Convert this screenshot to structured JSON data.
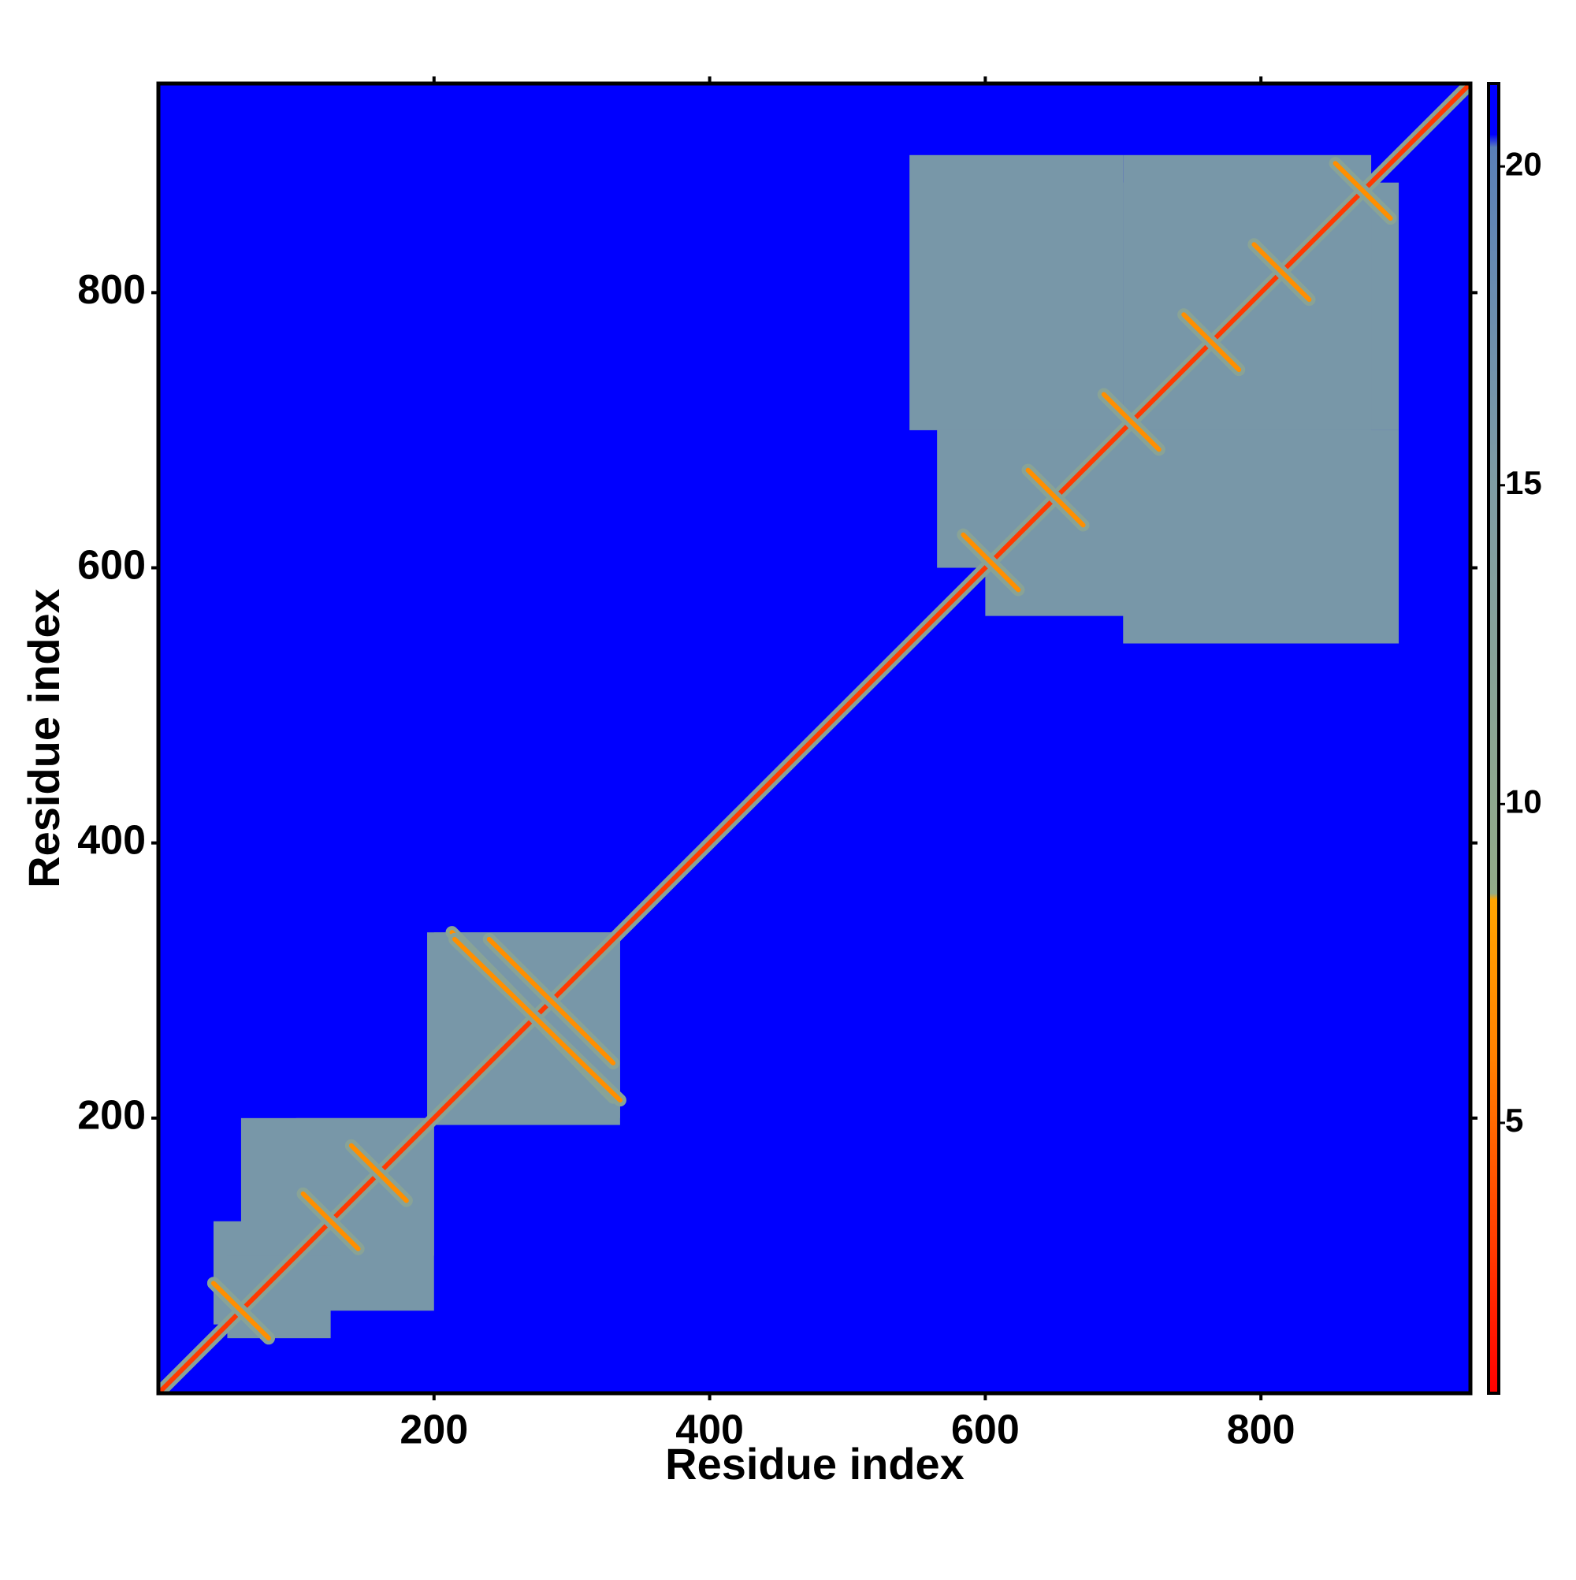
{
  "chart_data": {
    "type": "heatmap",
    "x_label": "Residue index",
    "y_label": "Residue index",
    "xlim": [
      0,
      952
    ],
    "ylim": [
      0,
      952
    ],
    "xticks": [
      200,
      400,
      600,
      800
    ],
    "yticks": [
      200,
      400,
      600,
      800
    ],
    "symmetric": true,
    "clim": [
      0.76,
      21.3
    ],
    "cticks": [
      5,
      10,
      15,
      20
    ],
    "colorscale": [
      {
        "value": 0.76,
        "color": "#ff0000"
      },
      {
        "value": 3,
        "color": "#ff3a00"
      },
      {
        "value": 6,
        "color": "#ff8000"
      },
      {
        "value": 8.5,
        "color": "#ffa500"
      },
      {
        "value": 8.6,
        "color": "#93ab88"
      },
      {
        "value": 15,
        "color": "#7f9ca4"
      },
      {
        "value": 20.3,
        "color": "#5a80b8"
      },
      {
        "value": 20.5,
        "color": "#0000ff"
      },
      {
        "value": 21.3,
        "color": "#0000ff"
      }
    ],
    "regions": [
      {
        "x": [
          0,
          952
        ],
        "y": [
          0,
          952
        ],
        "value": 21
      },
      {
        "x": [
          200,
          335
        ],
        "y": [
          195,
          335
        ],
        "value": 16
      },
      {
        "x": [
          100,
          200
        ],
        "y": [
          60,
          200
        ],
        "value": 16
      },
      {
        "x": [
          40,
          100
        ],
        "y": [
          50,
          125
        ],
        "value": 16
      },
      {
        "x": [
          565,
          700
        ],
        "y": [
          600,
          880
        ],
        "value": 16
      },
      {
        "x": [
          700,
          900
        ],
        "y": [
          700,
          880
        ],
        "value": 16
      },
      {
        "x": [
          700,
          900
        ],
        "y": [
          545,
          700
        ],
        "value": 16
      }
    ],
    "features": [
      {
        "x": [
          1,
          952
        ],
        "y": [
          1,
          952
        ],
        "value": 3
      },
      {
        "x": [
          40,
          80
        ],
        "y": [
          80,
          40
        ],
        "value": 7
      },
      {
        "x": [
          105,
          145
        ],
        "y": [
          145,
          105
        ],
        "value": 7
      },
      {
        "x": [
          140,
          180
        ],
        "y": [
          180,
          140
        ],
        "value": 7
      },
      {
        "x": [
          213,
          330
        ],
        "y": [
          335,
          215
        ],
        "value": 7
      },
      {
        "x": [
          240,
          330
        ],
        "y": [
          330,
          240
        ],
        "value": 7
      },
      {
        "x": [
          584,
          624
        ],
        "y": [
          624,
          584
        ],
        "value": 7
      },
      {
        "x": [
          631,
          671
        ],
        "y": [
          671,
          631
        ],
        "value": 7
      },
      {
        "x": [
          686,
          726
        ],
        "y": [
          726,
          686
        ],
        "value": 7
      },
      {
        "x": [
          744,
          784
        ],
        "y": [
          784,
          744
        ],
        "value": 7
      },
      {
        "x": [
          795,
          835
        ],
        "y": [
          835,
          795
        ],
        "value": 7
      },
      {
        "x": [
          854,
          894
        ],
        "y": [
          894,
          854
        ],
        "value": 7
      }
    ]
  }
}
